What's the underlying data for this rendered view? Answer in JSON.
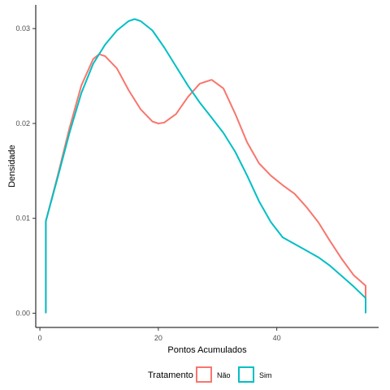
{
  "chart_data": {
    "type": "area",
    "xlabel": "Pontos Acumulados",
    "ylabel": "Densidade",
    "xlim": [
      -0.7,
      57.2
    ],
    "ylim": [
      -0.0015,
      0.0325
    ],
    "xticks": [
      0,
      20,
      40
    ],
    "yticks": [
      0.0,
      0.01,
      0.02,
      0.03
    ],
    "xtick_labels": [
      "0",
      "20",
      "40"
    ],
    "ytick_labels": [
      "0.00",
      "0.01",
      "0.02",
      "0.03"
    ],
    "grid": false,
    "legend": {
      "title": "Tratamento",
      "position": "bottom"
    },
    "series": [
      {
        "name": "Não",
        "color": "#F8766D",
        "points": [
          [
            1,
            0
          ],
          [
            1,
            0.0097
          ],
          [
            3,
            0.0145
          ],
          [
            5,
            0.0195
          ],
          [
            7,
            0.024
          ],
          [
            9,
            0.0268
          ],
          [
            10,
            0.0273
          ],
          [
            11,
            0.0271
          ],
          [
            13,
            0.0258
          ],
          [
            15,
            0.0235
          ],
          [
            17,
            0.0215
          ],
          [
            19,
            0.0202
          ],
          [
            20,
            0.02
          ],
          [
            21,
            0.0201
          ],
          [
            23,
            0.021
          ],
          [
            25,
            0.0228
          ],
          [
            27,
            0.0242
          ],
          [
            29,
            0.0246
          ],
          [
            31,
            0.0237
          ],
          [
            33,
            0.021
          ],
          [
            35,
            0.018
          ],
          [
            37,
            0.0158
          ],
          [
            39,
            0.0145
          ],
          [
            41,
            0.0135
          ],
          [
            43,
            0.0126
          ],
          [
            45,
            0.0112
          ],
          [
            47,
            0.0096
          ],
          [
            49,
            0.0076
          ],
          [
            51,
            0.0057
          ],
          [
            53,
            0.004
          ],
          [
            55,
            0.0029
          ],
          [
            55,
            0
          ]
        ]
      },
      {
        "name": "Sim",
        "color": "#00BFC4",
        "points": [
          [
            1,
            0
          ],
          [
            1,
            0.0097
          ],
          [
            3,
            0.0143
          ],
          [
            5,
            0.019
          ],
          [
            7,
            0.0232
          ],
          [
            9,
            0.0263
          ],
          [
            11,
            0.0283
          ],
          [
            13,
            0.0298
          ],
          [
            15,
            0.0308
          ],
          [
            16,
            0.031
          ],
          [
            17,
            0.0308
          ],
          [
            19,
            0.0298
          ],
          [
            21,
            0.028
          ],
          [
            23,
            0.026
          ],
          [
            25,
            0.024
          ],
          [
            27,
            0.0222
          ],
          [
            29,
            0.0206
          ],
          [
            31,
            0.019
          ],
          [
            33,
            0.017
          ],
          [
            35,
            0.0145
          ],
          [
            37,
            0.0118
          ],
          [
            39,
            0.0096
          ],
          [
            41,
            0.008
          ],
          [
            43,
            0.0073
          ],
          [
            45,
            0.0066
          ],
          [
            47,
            0.0059
          ],
          [
            49,
            0.005
          ],
          [
            51,
            0.0039
          ],
          [
            53,
            0.0028
          ],
          [
            55,
            0.0016
          ],
          [
            55,
            0
          ]
        ]
      }
    ]
  }
}
